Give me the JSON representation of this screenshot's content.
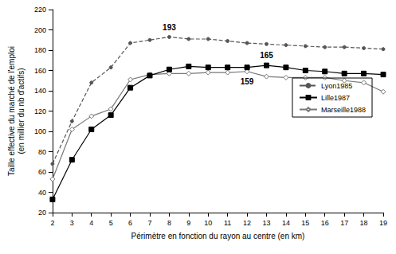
{
  "chart_data": {
    "type": "line",
    "xlabel": "Périmètre en fonction du rayon au centre (en km)",
    "ylabel": "Taille effective du marché de l'emploi (en millier du nb d'actifs)",
    "x": [
      2,
      3,
      4,
      5,
      6,
      7,
      8,
      9,
      10,
      11,
      12,
      13,
      14,
      15,
      16,
      17,
      18,
      19
    ],
    "series": [
      {
        "name": "Lyon1985",
        "color": "#555555",
        "marker": "circle",
        "line_style": "dashed",
        "values": [
          68,
          110,
          148,
          163,
          187,
          190,
          193,
          191,
          191,
          189,
          187,
          186,
          185,
          184,
          183,
          183,
          182,
          181
        ]
      },
      {
        "name": "Lille1987",
        "color": "#000000",
        "marker": "square",
        "line_style": "solid",
        "values": [
          33,
          72,
          102,
          116,
          143,
          155,
          161,
          164,
          163,
          163,
          163,
          165,
          163,
          160,
          159,
          157,
          157,
          156
        ]
      },
      {
        "name": "Marseille1988",
        "color": "#777777",
        "marker": "diamond",
        "line_style": "solid",
        "values": [
          53,
          102,
          115,
          122,
          151,
          156,
          157,
          157,
          158,
          158,
          159,
          154,
          153,
          153,
          153,
          150,
          148,
          139
        ]
      }
    ],
    "annotations": [
      {
        "text": "193",
        "series": "Lyon1985",
        "x": 8,
        "y": 193
      },
      {
        "text": "165",
        "series": "Lille1987",
        "x": 13,
        "y": 165
      },
      {
        "text": "159",
        "series": "Marseille1988",
        "x": 12,
        "y": 159
      }
    ],
    "xlim": [
      2,
      19
    ],
    "xticks": [
      2,
      3,
      4,
      5,
      6,
      7,
      8,
      9,
      10,
      11,
      12,
      13,
      14,
      15,
      16,
      17,
      18,
      19
    ],
    "ylim": [
      20,
      220
    ],
    "yticks": [
      20,
      40,
      60,
      80,
      100,
      120,
      140,
      160,
      180,
      200,
      220
    ],
    "grid": false,
    "legend": "right"
  }
}
